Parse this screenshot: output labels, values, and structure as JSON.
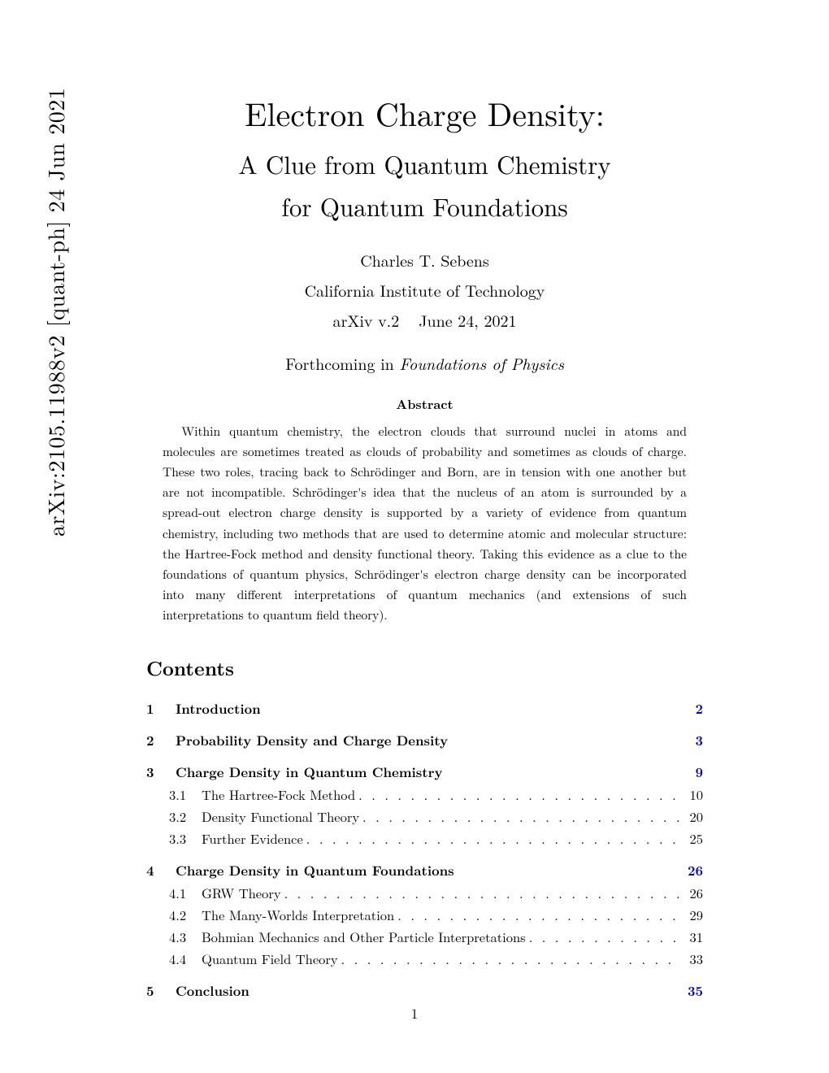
{
  "arxiv_stamp": "arXiv:2105.11988v2  [quant-ph]  24 Jun 2021",
  "title": {
    "line1": "Electron Charge Density:",
    "line2": "A Clue from Quantum Chemistry",
    "line3": "for Quantum Foundations"
  },
  "author": "Charles T. Sebens",
  "affiliation": "California Institute of Technology",
  "version": "arXiv v.2",
  "date": "June 24, 2021",
  "forthcoming_prefix": "Forthcoming in ",
  "forthcoming_journal": "Foundations of Physics",
  "abstract_title": "Abstract",
  "abstract_body": "Within quantum chemistry, the electron clouds that surround nuclei in atoms and molecules are sometimes treated as clouds of probability and sometimes as clouds of charge. These two roles, tracing back to Schrödinger and Born, are in tension with one another but are not incompatible. Schrödinger's idea that the nucleus of an atom is surrounded by a spread-out electron charge density is supported by a variety of evidence from quantum chemistry, including two methods that are used to determine atomic and molecular structure: the Hartree-Fock method and density functional theory. Taking this evidence as a clue to the foundations of quantum physics, Schrödinger's electron charge density can be incorporated into many different interpretations of quantum mechanics (and extensions of such interpretations to quantum field theory).",
  "contents_title": "Contents",
  "toc": {
    "sections": [
      {
        "num": "1",
        "label": "Introduction",
        "page": "2",
        "subs": []
      },
      {
        "num": "2",
        "label": "Probability Density and Charge Density",
        "page": "3",
        "subs": []
      },
      {
        "num": "3",
        "label": "Charge Density in Quantum Chemistry",
        "page": "9",
        "subs": [
          {
            "num": "3.1",
            "label": "The Hartree-Fock Method",
            "page": "10"
          },
          {
            "num": "3.2",
            "label": "Density Functional Theory",
            "page": "20"
          },
          {
            "num": "3.3",
            "label": "Further Evidence",
            "page": "25"
          }
        ]
      },
      {
        "num": "4",
        "label": "Charge Density in Quantum Foundations",
        "page": "26",
        "subs": [
          {
            "num": "4.1",
            "label": "GRW Theory",
            "page": "26"
          },
          {
            "num": "4.2",
            "label": "The Many-Worlds Interpretation",
            "page": "29"
          },
          {
            "num": "4.3",
            "label": "Bohmian Mechanics and Other Particle Interpretations",
            "page": "31"
          },
          {
            "num": "4.4",
            "label": "Quantum Field Theory",
            "page": "33"
          }
        ]
      },
      {
        "num": "5",
        "label": "Conclusion",
        "page": "35",
        "subs": []
      }
    ]
  },
  "page_number": "1",
  "colors": {
    "link_blue": "#0000cc",
    "text": "#000000",
    "background": "#ffffff"
  },
  "dots": ". . . . . . . . . . . . . . . . . . . . . . . . . . . . . . . . . . . . . . . . . . . . . . . . . . . . . . . . . . . ."
}
